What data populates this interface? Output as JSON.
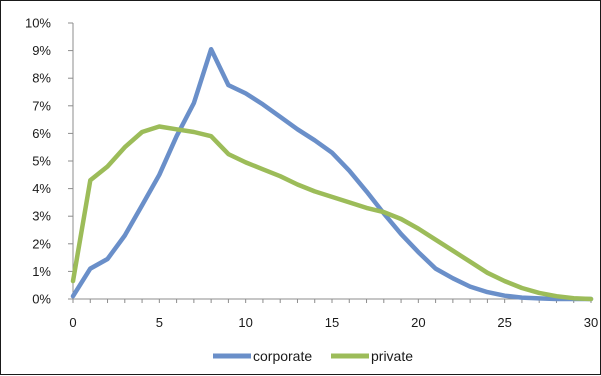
{
  "chart_data": {
    "type": "line",
    "title": "",
    "xlabel": "",
    "ylabel": "",
    "xlim": [
      0,
      30
    ],
    "ylim": [
      0,
      10
    ],
    "x_ticks": [
      "0",
      "5",
      "10",
      "15",
      "20",
      "25",
      "30"
    ],
    "y_ticks": [
      "0%",
      "1%",
      "2%",
      "3%",
      "4%",
      "5%",
      "6%",
      "7%",
      "8%",
      "9%",
      "10%"
    ],
    "grid": false,
    "legend_position": "bottom",
    "x": [
      0,
      1,
      2,
      3,
      4,
      5,
      6,
      7,
      8,
      9,
      10,
      11,
      12,
      13,
      14,
      15,
      16,
      17,
      18,
      19,
      20,
      21,
      22,
      23,
      24,
      25,
      26,
      27,
      28,
      29,
      30
    ],
    "series": [
      {
        "name": "corporate",
        "color": "#6a8fc9",
        "values": [
          0.1,
          1.1,
          1.45,
          2.3,
          3.4,
          4.5,
          5.9,
          7.1,
          9.05,
          7.75,
          7.45,
          7.05,
          6.6,
          6.15,
          5.75,
          5.3,
          4.65,
          3.9,
          3.1,
          2.35,
          1.7,
          1.1,
          0.75,
          0.45,
          0.25,
          0.12,
          0.05,
          0.02,
          0.0,
          0.0,
          0.0
        ]
      },
      {
        "name": "private",
        "color": "#9cbc59",
        "values": [
          0.65,
          4.3,
          4.8,
          5.5,
          6.05,
          6.25,
          6.15,
          6.05,
          5.9,
          5.25,
          4.95,
          4.7,
          4.45,
          4.15,
          3.9,
          3.7,
          3.5,
          3.3,
          3.15,
          2.9,
          2.55,
          2.15,
          1.75,
          1.35,
          0.95,
          0.65,
          0.4,
          0.22,
          0.1,
          0.03,
          0.0
        ]
      }
    ]
  }
}
